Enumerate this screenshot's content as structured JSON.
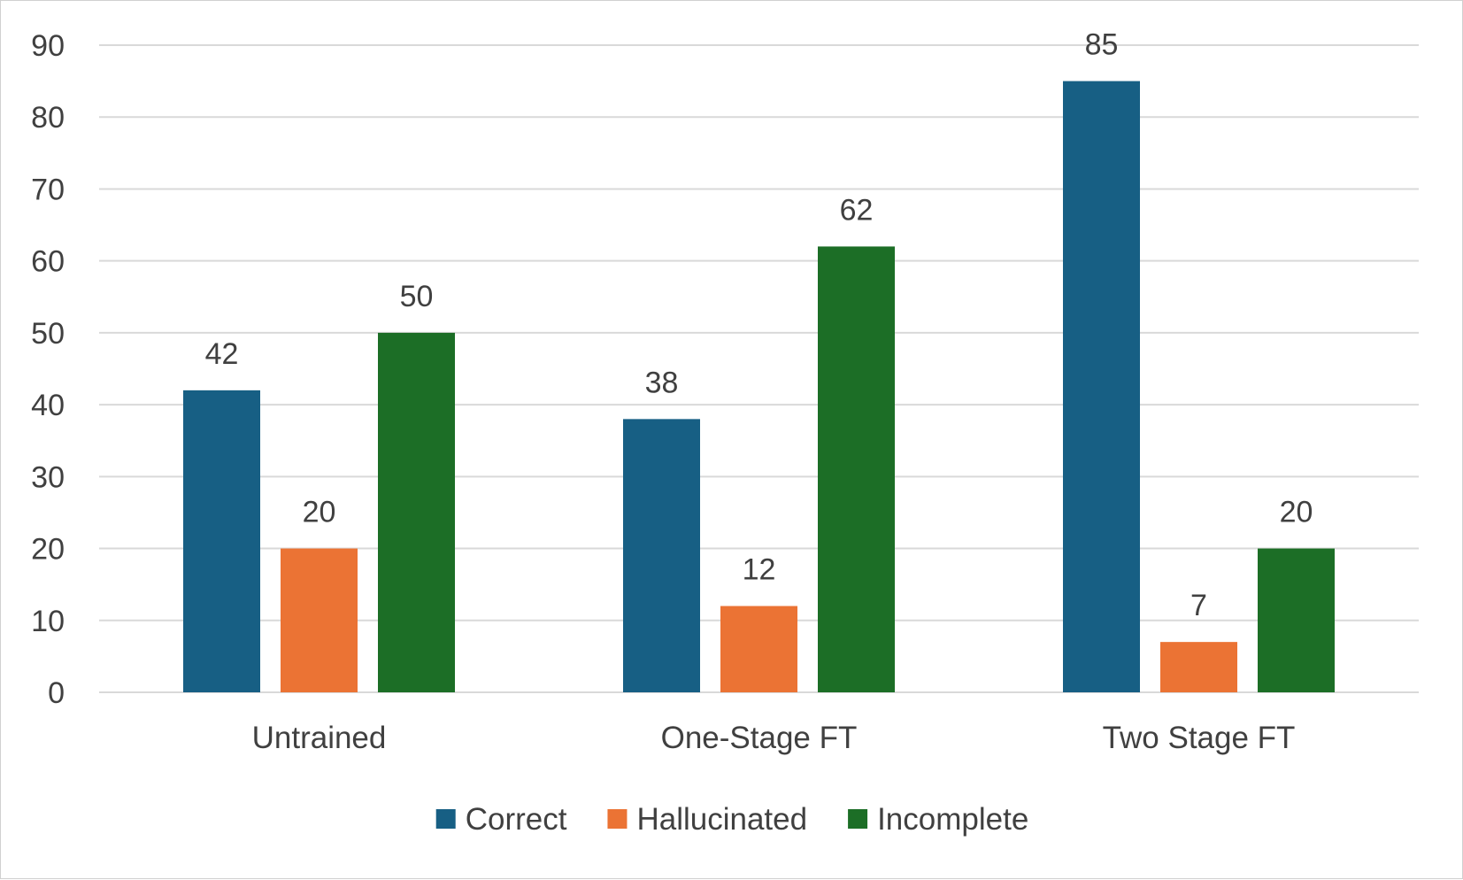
{
  "chart_data": {
    "type": "bar",
    "title": "",
    "xlabel": "",
    "ylabel": "",
    "categories": [
      "Untrained",
      "One-Stage FT",
      "Two Stage FT"
    ],
    "series": [
      {
        "name": "Correct",
        "color": "#175f84",
        "values": [
          42,
          38,
          85
        ]
      },
      {
        "name": "Hallucinated",
        "color": "#eb7334",
        "values": [
          20,
          12,
          7
        ]
      },
      {
        "name": "Incomplete",
        "color": "#1c6e26",
        "values": [
          50,
          62,
          20
        ]
      }
    ],
    "ylim": [
      0,
      90
    ],
    "yticks": [
      0,
      10,
      20,
      30,
      40,
      50,
      60,
      70,
      80,
      90
    ],
    "grid": true,
    "data_labels": true,
    "legend_position": "bottom"
  }
}
